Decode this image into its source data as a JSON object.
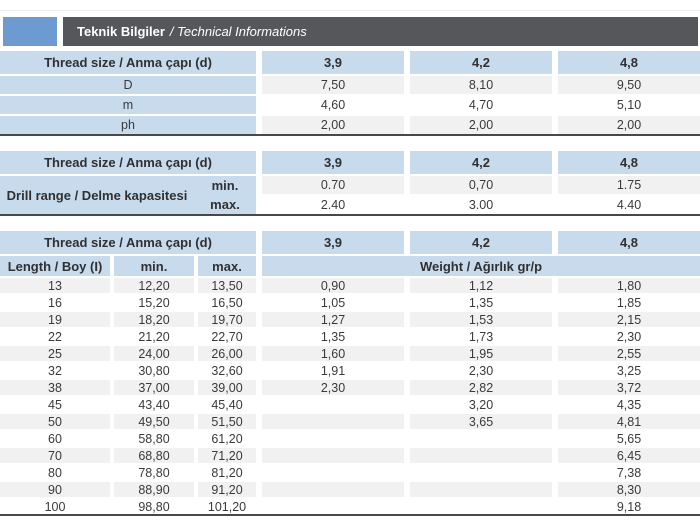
{
  "header": {
    "title_bold": "Teknik Bilgiler",
    "title_italic": "/ Technical Informations"
  },
  "colors": {
    "accent_blue": "#6d9ad0",
    "bar_dark": "#56575b",
    "cell_blue": "#c8dbed",
    "row_gray": "#f1f1f2",
    "rule_dark": "#48484a",
    "text": "#3a3a3c"
  },
  "table1": {
    "header": {
      "label": "Thread size / Anma çapı (d)",
      "sizes": [
        "3,9",
        "4,2",
        "4,8"
      ]
    },
    "rows": [
      {
        "label": "D",
        "v": [
          "7,50",
          "8,10",
          "9,50"
        ]
      },
      {
        "label": "m",
        "v": [
          "4,60",
          "4,70",
          "5,10"
        ]
      },
      {
        "label": "ph",
        "v": [
          "2,00",
          "2,00",
          "2,00"
        ]
      }
    ]
  },
  "table2": {
    "header": {
      "label": "Thread size / Anma çapı (d)",
      "sizes": [
        "3,9",
        "4,2",
        "4,8"
      ]
    },
    "group_label": "Drill range / Delme kapasitesi",
    "rows": [
      {
        "label": "min.",
        "v": [
          "0.70",
          "0,70",
          "1.75"
        ]
      },
      {
        "label": "max.",
        "v": [
          "2.40",
          "3.00",
          "4.40"
        ]
      }
    ]
  },
  "table3": {
    "header": {
      "label": "Thread size / Anma çapı (d)",
      "sizes": [
        "3,9",
        "4,2",
        "4,8"
      ]
    },
    "subheader": {
      "length": "Length / Boy (I)",
      "min": "min.",
      "max": "max.",
      "weight": "Weight / Ağırlık gr/p"
    },
    "rows": [
      {
        "l": "13",
        "min": "12,20",
        "max": "13,50",
        "w": [
          "0,90",
          "1,12",
          "1,80"
        ]
      },
      {
        "l": "16",
        "min": "15,20",
        "max": "16,50",
        "w": [
          "1,05",
          "1,35",
          "1,85"
        ]
      },
      {
        "l": "19",
        "min": "18,20",
        "max": "19,70",
        "w": [
          "1,27",
          "1,53",
          "2,15"
        ]
      },
      {
        "l": "22",
        "min": "21,20",
        "max": "22,70",
        "w": [
          "1,35",
          "1,73",
          "2,30"
        ]
      },
      {
        "l": "25",
        "min": "24,00",
        "max": "26,00",
        "w": [
          "1,60",
          "1,95",
          "2,55"
        ]
      },
      {
        "l": "32",
        "min": "30,80",
        "max": "32,60",
        "w": [
          "1,91",
          "2,30",
          "3,25"
        ]
      },
      {
        "l": "38",
        "min": "37,00",
        "max": "39,00",
        "w": [
          "2,30",
          "2,82",
          "3,72"
        ]
      },
      {
        "l": "45",
        "min": "43,40",
        "max": "45,40",
        "w": [
          "",
          "3,20",
          "4,35"
        ]
      },
      {
        "l": "50",
        "min": "49,50",
        "max": "51,50",
        "w": [
          "",
          "3,65",
          "4,81"
        ]
      },
      {
        "l": "60",
        "min": "58,80",
        "max": "61,20",
        "w": [
          "",
          "",
          "5,65"
        ]
      },
      {
        "l": "70",
        "min": "68,80",
        "max": "71,20",
        "w": [
          "",
          "",
          "6,45"
        ]
      },
      {
        "l": "80",
        "min": "78,80",
        "max": "81,20",
        "w": [
          "",
          "",
          "7,38"
        ]
      },
      {
        "l": "90",
        "min": "88,90",
        "max": "91,20",
        "w": [
          "",
          "",
          "8,30"
        ]
      },
      {
        "l": "100",
        "min": "98,80",
        "max": "101,20",
        "w": [
          "",
          "",
          "9,18"
        ]
      }
    ]
  }
}
